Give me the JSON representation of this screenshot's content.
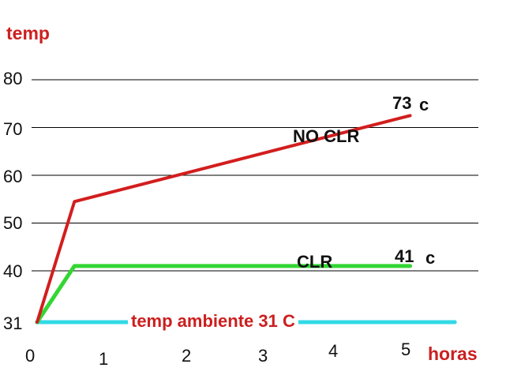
{
  "chart_data": {
    "type": "line",
    "ylabel": "temp",
    "xlabel": "horas",
    "x_ticks": [
      "0",
      "1",
      "2",
      "3",
      "4",
      "5"
    ],
    "y_ticks": [
      "31",
      "40",
      "50",
      "60",
      "70",
      "80"
    ],
    "grid": true,
    "colors": {
      "no_clr": "#d21e1e",
      "clr": "#33d633",
      "ambient": "#33d9e6",
      "titles": "#cc1f1f"
    },
    "series": [
      {
        "name": "NO CLR",
        "x": [
          0,
          0.5,
          5
        ],
        "y": [
          31,
          54.5,
          72.5
        ],
        "end_label": "73",
        "end_unit": "c"
      },
      {
        "name": "CLR",
        "x": [
          0,
          0.5,
          5
        ],
        "y": [
          31,
          41,
          41
        ],
        "end_label": "41",
        "end_unit": "c"
      },
      {
        "name": "temp ambiente 31 C",
        "x": [
          0,
          5.6
        ],
        "y": [
          31,
          31
        ]
      }
    ]
  }
}
